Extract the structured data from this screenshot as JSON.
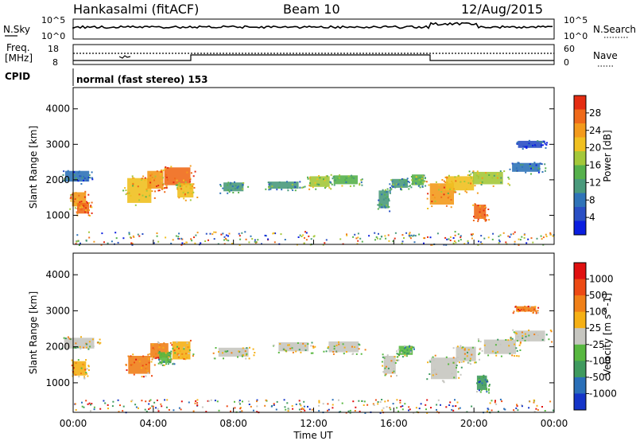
{
  "header": {
    "station": "Hankasalmi (fitACF)",
    "beam": "Beam 10",
    "date": "12/Aug/2015"
  },
  "summary": {
    "nsky_label": "N.Sky",
    "nsearch_label": "N.Search",
    "freq_label_line1": "Freq.",
    "freq_label_line2": "[MHz]",
    "nave_label": "Nave",
    "cpid_label": "CPID",
    "cpid_text": "normal (fast stereo) 153",
    "noise_ticks": [
      "10^5",
      "10^0"
    ],
    "freq_ticks": [
      "18",
      "8"
    ],
    "nave_ticks": [
      "60",
      "0"
    ]
  },
  "colors": {
    "power": [
      "#0a1ee0",
      "#2a4fc4",
      "#2f73b8",
      "#4a9a7c",
      "#56b14c",
      "#a4c83a",
      "#f0c020",
      "#f39a1c",
      "#ef6a1a",
      "#e42c12"
    ],
    "velocity": [
      "#1535c8",
      "#2a6fb8",
      "#3f9a5e",
      "#58b840",
      "#c6c6c0",
      "#f5b015",
      "#f08018",
      "#ed4a14",
      "#e01010"
    ]
  },
  "chart_data": [
    {
      "type": "heatmap",
      "parameter": "Power",
      "xlabel": "",
      "ylabel": "Slant Range [km]",
      "colorbar_label": "Power [dB]",
      "colorbar_ticks": [
        "28",
        "24",
        "20",
        "16",
        "12",
        "8",
        "4"
      ],
      "y_ticks": [
        "4000",
        "3000",
        "2000",
        "1000"
      ],
      "x_ticks": [],
      "xlim": [
        0,
        24
      ],
      "ylim": [
        180,
        4600
      ],
      "cells": [
        [
          0.3,
          1450,
          0.7,
          400,
          7
        ],
        [
          0.5,
          1200,
          0.6,
          300,
          8
        ],
        [
          0.2,
          2100,
          1.2,
          300,
          2
        ],
        [
          3.3,
          1700,
          1.2,
          700,
          6
        ],
        [
          4.1,
          2000,
          0.8,
          500,
          7
        ],
        [
          5.2,
          2100,
          1.3,
          500,
          8
        ],
        [
          5.6,
          1700,
          0.8,
          400,
          6
        ],
        [
          8.0,
          1800,
          1.0,
          250,
          3
        ],
        [
          10.5,
          1850,
          1.5,
          200,
          3
        ],
        [
          12.3,
          1950,
          1.0,
          300,
          5
        ],
        [
          13.6,
          2000,
          1.2,
          250,
          4
        ],
        [
          15.5,
          1450,
          0.5,
          500,
          3
        ],
        [
          16.3,
          1900,
          0.8,
          250,
          3
        ],
        [
          17.2,
          2000,
          0.6,
          300,
          4
        ],
        [
          18.4,
          1600,
          1.2,
          600,
          7
        ],
        [
          19.3,
          1900,
          1.4,
          400,
          6
        ],
        [
          20.3,
          1100,
          0.6,
          400,
          8
        ],
        [
          20.7,
          2050,
          1.5,
          350,
          5
        ],
        [
          22.6,
          2350,
          1.4,
          250,
          2
        ],
        [
          22.8,
          3000,
          1.2,
          200,
          1
        ]
      ]
    },
    {
      "type": "heatmap",
      "parameter": "Velocity",
      "xlabel": "Time UT",
      "ylabel": "Slant Range [km]",
      "colorbar_label": "Velocity [m s^-1]",
      "colorbar_ticks": [
        "1000",
        "500",
        "100",
        "25",
        "-25",
        "-100",
        "-500",
        "-1000"
      ],
      "y_ticks": [
        "4000",
        "3000",
        "2000",
        "1000"
      ],
      "x_ticks": [
        "00:00",
        "04:00",
        "08:00",
        "12:00",
        "16:00",
        "20:00",
        "00:00"
      ],
      "xlim": [
        0,
        24
      ],
      "ylim": [
        180,
        4600
      ],
      "cells": [
        [
          0.3,
          1400,
          0.7,
          400,
          5
        ],
        [
          0.3,
          2100,
          1.5,
          300,
          4
        ],
        [
          3.3,
          1500,
          1.1,
          500,
          6
        ],
        [
          4.3,
          1900,
          0.9,
          400,
          6
        ],
        [
          5.4,
          1900,
          0.9,
          500,
          5
        ],
        [
          4.6,
          1700,
          0.6,
          300,
          3
        ],
        [
          8.0,
          1850,
          1.5,
          250,
          4
        ],
        [
          11.0,
          2000,
          1.5,
          250,
          4
        ],
        [
          13.5,
          2000,
          1.5,
          300,
          4
        ],
        [
          15.8,
          1500,
          0.6,
          500,
          4
        ],
        [
          16.6,
          1900,
          0.7,
          250,
          3
        ],
        [
          18.5,
          1400,
          1.3,
          600,
          4
        ],
        [
          19.6,
          1800,
          1.0,
          400,
          4
        ],
        [
          20.4,
          1000,
          0.5,
          400,
          2
        ],
        [
          21.3,
          2000,
          1.6,
          400,
          4
        ],
        [
          22.8,
          2300,
          1.5,
          300,
          4
        ],
        [
          22.6,
          3050,
          1.0,
          150,
          6
        ]
      ]
    }
  ]
}
